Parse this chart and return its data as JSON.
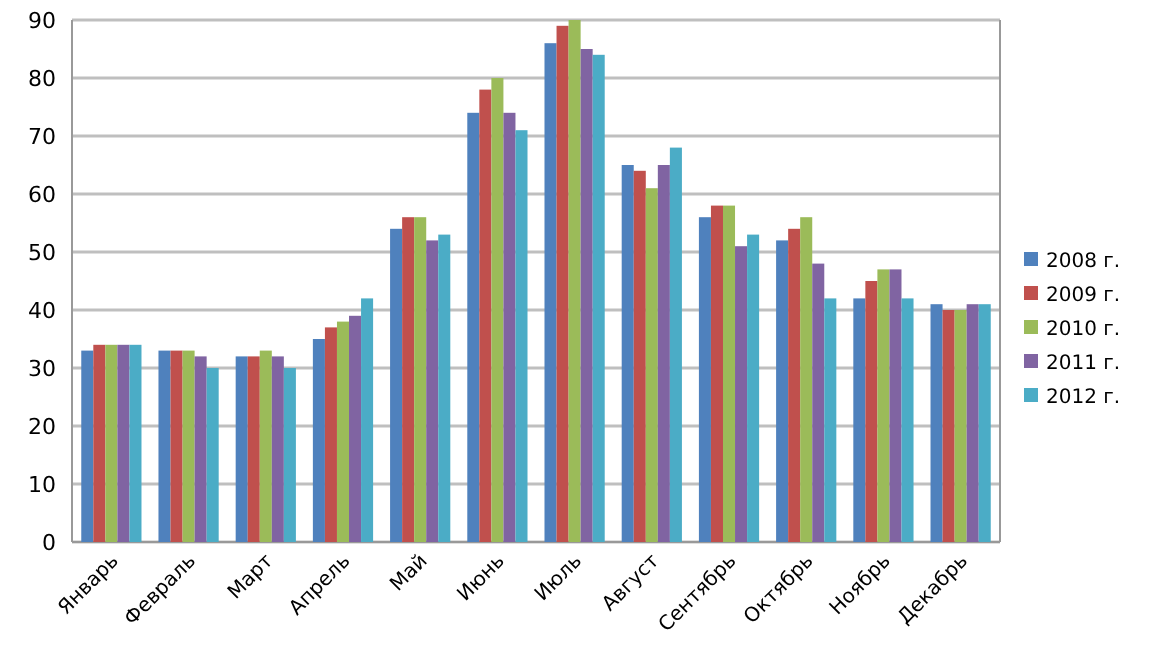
{
  "chart_data": {
    "type": "bar",
    "categories": [
      "Январь",
      "Февраль",
      "Март",
      "Апрель",
      "Май",
      "Июнь",
      "Июль",
      "Август",
      "Сентябрь",
      "Октябрь",
      "Ноябрь",
      "Декабрь"
    ],
    "series": [
      {
        "name": "2008 г.",
        "color": "#4f81bd",
        "values": [
          33,
          33,
          32,
          35,
          54,
          74,
          86,
          65,
          56,
          52,
          42,
          41
        ]
      },
      {
        "name": "2009 г.",
        "color": "#c0504d",
        "values": [
          34,
          33,
          32,
          37,
          56,
          78,
          89,
          64,
          58,
          54,
          45,
          40
        ]
      },
      {
        "name": "2010 г.",
        "color": "#9bbb59",
        "values": [
          34,
          33,
          33,
          38,
          56,
          80,
          90,
          61,
          58,
          56,
          47,
          40
        ]
      },
      {
        "name": "2011 г.",
        "color": "#8064a2",
        "values": [
          34,
          32,
          32,
          39,
          52,
          74,
          85,
          65,
          51,
          48,
          47,
          41
        ]
      },
      {
        "name": "2012 г.",
        "color": "#4bacc6",
        "values": [
          34,
          30,
          30,
          42,
          53,
          71,
          84,
          68,
          53,
          42,
          42,
          41
        ]
      }
    ],
    "ylim": [
      0,
      90
    ],
    "yticks": [
      0,
      10,
      20,
      30,
      40,
      50,
      60,
      70,
      80,
      90
    ],
    "grid": "y",
    "legend": "right"
  }
}
